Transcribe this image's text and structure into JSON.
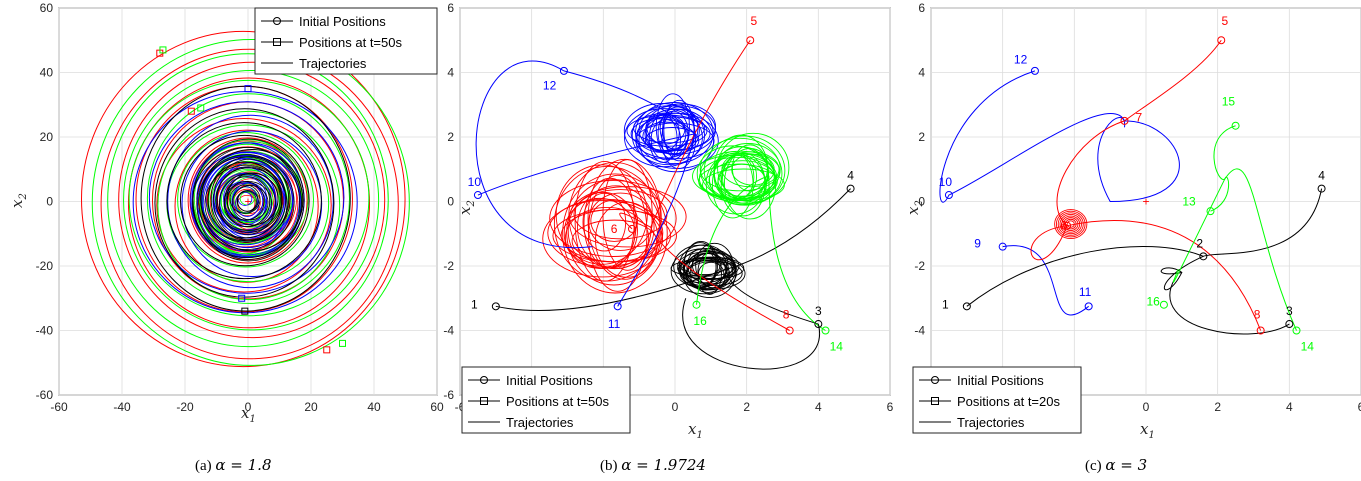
{
  "chart_data": [
    {
      "type": "line",
      "caption_label": "(a)",
      "caption_param": "α = 1.8",
      "xlabel": "x",
      "xlabel_sub": "1",
      "ylabel": "x",
      "ylabel_sub": "2",
      "xlim": [
        -60,
        60
      ],
      "ylim": [
        -60,
        60
      ],
      "xticks": [
        -60,
        -40,
        -20,
        0,
        20,
        40,
        60
      ],
      "yticks": [
        -60,
        -40,
        -20,
        0,
        20,
        40,
        60
      ],
      "grid": true,
      "legend_position": "top-right",
      "legend": [
        "Initial Positions",
        "Positions at t=50s",
        "Trajectories"
      ],
      "center": [
        0,
        0
      ],
      "series": [
        {
          "color": "#ff0000",
          "spirals": [
            52,
            47,
            43,
            39,
            35,
            31,
            27,
            23,
            19,
            15
          ]
        },
        {
          "color": "#00ff00",
          "spirals": [
            50,
            45,
            41,
            37,
            33,
            29,
            25,
            21,
            17,
            13
          ]
        },
        {
          "color": "#0000ff",
          "spirals": [
            35,
            30,
            26,
            22,
            18,
            14,
            10,
            6
          ]
        },
        {
          "color": "#000000",
          "spirals": [
            34,
            29,
            24,
            20,
            16,
            12,
            8
          ]
        }
      ],
      "final_markers": [
        {
          "x": -28,
          "y": 46,
          "color": "#ff0000"
        },
        {
          "x": -27,
          "y": 47,
          "color": "#00ff00"
        },
        {
          "x": 0,
          "y": 35,
          "color": "#0000ff"
        },
        {
          "x": 25,
          "y": -46,
          "color": "#ff0000"
        },
        {
          "x": 30,
          "y": -44,
          "color": "#00ff00"
        },
        {
          "x": -1,
          "y": -34,
          "color": "#000000"
        },
        {
          "x": -2,
          "y": -30,
          "color": "#0000ff"
        },
        {
          "x": -18,
          "y": 28,
          "color": "#ff0000"
        },
        {
          "x": -15,
          "y": 29,
          "color": "#00ff00"
        }
      ]
    },
    {
      "type": "line",
      "caption_label": "(b)",
      "caption_param": "α = 1.9724",
      "xlabel": "x",
      "xlabel_sub": "1",
      "ylabel": "x",
      "ylabel_sub": "2",
      "xlim": [
        -6,
        6
      ],
      "ylim": [
        -6,
        6
      ],
      "xticks": [
        -6,
        -4,
        -2,
        0,
        2,
        4,
        6
      ],
      "yticks": [
        -6,
        -4,
        -2,
        0,
        2,
        4,
        6
      ],
      "grid": true,
      "legend_position": "bottom-left",
      "legend": [
        "Initial Positions",
        "Positions at t=50s",
        "Trajectories"
      ],
      "attractors": [
        {
          "color": "#ff0000",
          "cx": -1.7,
          "cy": -0.8,
          "rx": 1.7,
          "ry": 1.8
        },
        {
          "color": "#0000ff",
          "cx": -0.1,
          "cy": 2.1,
          "rx": 1.1,
          "ry": 1.0
        },
        {
          "color": "#00ff00",
          "cx": 1.9,
          "cy": 0.8,
          "rx": 1.2,
          "ry": 1.2
        },
        {
          "color": "#000000",
          "cx": 0.9,
          "cy": -2.1,
          "rx": 0.9,
          "ry": 0.7
        }
      ],
      "agents": [
        {
          "id": "1",
          "x": -5.0,
          "y": -3.25,
          "color": "#000000",
          "lx": -5.6,
          "ly": -3.2
        },
        {
          "id": "3",
          "x": 4.0,
          "y": -3.8,
          "color": "#000000",
          "lx": 4.0,
          "ly": -3.4
        },
        {
          "id": "4",
          "x": 4.9,
          "y": 0.4,
          "color": "#000000",
          "lx": 4.9,
          "ly": 0.8
        },
        {
          "id": "5",
          "x": 2.1,
          "y": 5.0,
          "color": "#ff0000",
          "lx": 2.2,
          "ly": 5.6
        },
        {
          "id": "6",
          "x": -1.2,
          "y": -0.85,
          "color": "#ff0000",
          "lx": -1.7,
          "ly": -0.85
        },
        {
          "id": "8",
          "x": 3.2,
          "y": -4.0,
          "color": "#ff0000",
          "lx": 3.1,
          "ly": -3.5
        },
        {
          "id": "10",
          "x": -5.5,
          "y": 0.2,
          "color": "#0000ff",
          "lx": -5.6,
          "ly": 0.6
        },
        {
          "id": "11",
          "x": -1.6,
          "y": -3.25,
          "color": "#0000ff",
          "lx": -1.7,
          "ly": -3.8
        },
        {
          "id": "12",
          "x": -3.1,
          "y": 4.05,
          "color": "#0000ff",
          "lx": -3.5,
          "ly": 3.6
        },
        {
          "id": "14",
          "x": 4.2,
          "y": -4.0,
          "color": "#00ff00",
          "lx": 4.5,
          "ly": -4.5
        },
        {
          "id": "16",
          "x": 0.6,
          "y": -3.2,
          "color": "#00ff00",
          "lx": 0.7,
          "ly": -3.7
        }
      ]
    },
    {
      "type": "line",
      "caption_label": "(c)",
      "caption_param": "α = 3",
      "xlabel": "x",
      "xlabel_sub": "1",
      "ylabel": "x",
      "ylabel_sub": "2",
      "xlim": [
        -6,
        6
      ],
      "ylim": [
        -6,
        6
      ],
      "xticks": [
        -6,
        -4,
        -2,
        0,
        2,
        4,
        6
      ],
      "yticks": [
        -6,
        -4,
        -2,
        0,
        2,
        4,
        6
      ],
      "grid": true,
      "legend_position": "bottom-left",
      "legend": [
        "Initial Positions",
        "Positions at t=20s",
        "Trajectories"
      ],
      "center": [
        0,
        0
      ],
      "agents": [
        {
          "id": "1",
          "x": -5.0,
          "y": -3.25,
          "color": "#000000",
          "lx": -5.6,
          "ly": -3.2
        },
        {
          "id": "2",
          "x": 1.6,
          "y": -1.7,
          "color": "#000000",
          "lx": 1.5,
          "ly": -1.3
        },
        {
          "id": "3",
          "x": 4.0,
          "y": -3.8,
          "color": "#000000",
          "lx": 4.0,
          "ly": -3.4
        },
        {
          "id": "4",
          "x": 4.9,
          "y": 0.4,
          "color": "#000000",
          "lx": 4.9,
          "ly": 0.8
        },
        {
          "id": "5",
          "x": 2.1,
          "y": 5.0,
          "color": "#ff0000",
          "lx": 2.2,
          "ly": 5.6
        },
        {
          "id": "6",
          "x": -2.2,
          "y": -0.75,
          "color": "#ff0000",
          "lx": -2.3,
          "ly": -0.75
        },
        {
          "id": "7",
          "x": -0.6,
          "y": 2.5,
          "color": "#ff0000",
          "lx": -0.2,
          "ly": 2.6
        },
        {
          "id": "8",
          "x": 3.2,
          "y": -4.0,
          "color": "#ff0000",
          "lx": 3.1,
          "ly": -3.5
        },
        {
          "id": "9",
          "x": -4.0,
          "y": -1.4,
          "color": "#0000ff",
          "lx": -4.7,
          "ly": -1.3
        },
        {
          "id": "10",
          "x": -5.5,
          "y": 0.2,
          "color": "#0000ff",
          "lx": -5.6,
          "ly": 0.6
        },
        {
          "id": "11",
          "x": -1.6,
          "y": -3.25,
          "color": "#0000ff",
          "lx": -1.7,
          "ly": -2.8
        },
        {
          "id": "12",
          "x": -3.1,
          "y": 4.05,
          "color": "#0000ff",
          "lx": -3.5,
          "ly": 4.4
        },
        {
          "id": "13",
          "x": 1.8,
          "y": -0.3,
          "color": "#00ff00",
          "lx": 1.2,
          "ly": 0.0
        },
        {
          "id": "14",
          "x": 4.2,
          "y": -4.0,
          "color": "#00ff00",
          "lx": 4.5,
          "ly": -4.5
        },
        {
          "id": "15",
          "x": 2.5,
          "y": 2.35,
          "color": "#00ff00",
          "lx": 2.3,
          "ly": 3.1
        },
        {
          "id": "16",
          "x": 0.5,
          "y": -3.2,
          "color": "#00ff00",
          "lx": 0.2,
          "ly": -3.1
        }
      ]
    }
  ]
}
